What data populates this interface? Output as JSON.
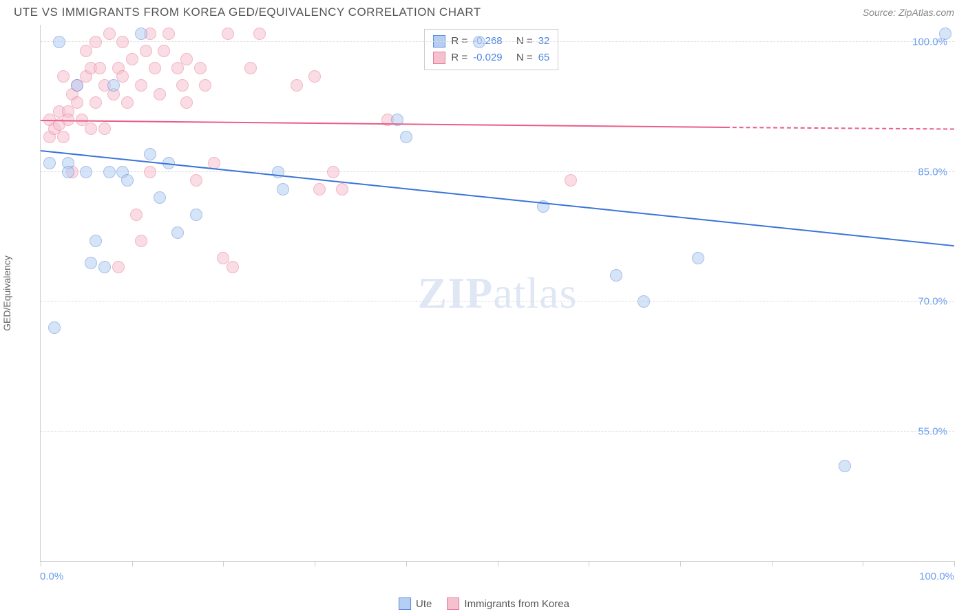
{
  "header": {
    "title": "UTE VS IMMIGRANTS FROM KOREA GED/EQUIVALENCY CORRELATION CHART",
    "source": "Source: ZipAtlas.com"
  },
  "watermark": {
    "part1": "ZIP",
    "part2": "atlas"
  },
  "chart": {
    "type": "scatter",
    "ylabel": "GED/Equivalency",
    "xlim": [
      0,
      100
    ],
    "ylim": [
      40,
      102
    ],
    "yticks": [
      55,
      70,
      85,
      100
    ],
    "ytick_labels": [
      "55.0%",
      "70.0%",
      "85.0%",
      "100.0%"
    ],
    "xtick_positions": [
      0,
      10,
      20,
      30,
      40,
      50,
      60,
      70,
      80,
      90,
      100
    ],
    "xaxis_left": "0.0%",
    "xaxis_right": "100.0%",
    "background_color": "#ffffff",
    "grid_color": "#dddddd",
    "axis_color": "#cccccc",
    "series": {
      "ute": {
        "label": "Ute",
        "fill_color": "#b5cef3",
        "border_color": "#5c8bd9",
        "R": "-0.268",
        "N": "32",
        "trend": {
          "x1": 0,
          "y1": 87.5,
          "x2": 100,
          "y2": 76.5,
          "color": "#3a74d8",
          "dashed_from": 100
        },
        "points": [
          {
            "x": 1,
            "y": 86
          },
          {
            "x": 1.5,
            "y": 67
          },
          {
            "x": 2,
            "y": 100
          },
          {
            "x": 3,
            "y": 86
          },
          {
            "x": 3,
            "y": 85
          },
          {
            "x": 4,
            "y": 95
          },
          {
            "x": 5,
            "y": 85
          },
          {
            "x": 5.5,
            "y": 74.5
          },
          {
            "x": 6,
            "y": 77
          },
          {
            "x": 7,
            "y": 74
          },
          {
            "x": 7.5,
            "y": 85
          },
          {
            "x": 8,
            "y": 95
          },
          {
            "x": 9,
            "y": 85
          },
          {
            "x": 9.5,
            "y": 84
          },
          {
            "x": 11,
            "y": 101
          },
          {
            "x": 12,
            "y": 87
          },
          {
            "x": 13,
            "y": 82
          },
          {
            "x": 14,
            "y": 86
          },
          {
            "x": 15,
            "y": 78
          },
          {
            "x": 17,
            "y": 80
          },
          {
            "x": 26,
            "y": 85
          },
          {
            "x": 26.5,
            "y": 83
          },
          {
            "x": 39,
            "y": 91
          },
          {
            "x": 40,
            "y": 89
          },
          {
            "x": 48,
            "y": 100
          },
          {
            "x": 55,
            "y": 81
          },
          {
            "x": 63,
            "y": 73
          },
          {
            "x": 66,
            "y": 70
          },
          {
            "x": 72,
            "y": 75
          },
          {
            "x": 88,
            "y": 51
          },
          {
            "x": 99,
            "y": 101
          }
        ]
      },
      "korea": {
        "label": "Immigrants from Korea",
        "fill_color": "#f6c1cf",
        "border_color": "#e87a99",
        "R": "-0.029",
        "N": "65",
        "trend": {
          "x1": 0,
          "y1": 91,
          "x2": 75,
          "y2": 90.2,
          "color": "#e95d86",
          "dashed_to": 100,
          "dashed_y": 90
        },
        "points": [
          {
            "x": 1,
            "y": 91
          },
          {
            "x": 1,
            "y": 89
          },
          {
            "x": 1.5,
            "y": 90
          },
          {
            "x": 2,
            "y": 92
          },
          {
            "x": 2,
            "y": 90.5
          },
          {
            "x": 2.5,
            "y": 96
          },
          {
            "x": 2.5,
            "y": 89
          },
          {
            "x": 3,
            "y": 92
          },
          {
            "x": 3,
            "y": 91
          },
          {
            "x": 3.5,
            "y": 94
          },
          {
            "x": 3.5,
            "y": 85
          },
          {
            "x": 4,
            "y": 95
          },
          {
            "x": 4,
            "y": 93
          },
          {
            "x": 4.5,
            "y": 91
          },
          {
            "x": 5,
            "y": 96
          },
          {
            "x": 5,
            "y": 99
          },
          {
            "x": 5.5,
            "y": 90
          },
          {
            "x": 5.5,
            "y": 97
          },
          {
            "x": 6,
            "y": 93
          },
          {
            "x": 6,
            "y": 100
          },
          {
            "x": 6.5,
            "y": 97
          },
          {
            "x": 7,
            "y": 95
          },
          {
            "x": 7,
            "y": 90
          },
          {
            "x": 7.5,
            "y": 101
          },
          {
            "x": 8,
            "y": 94
          },
          {
            "x": 8.5,
            "y": 97
          },
          {
            "x": 8.5,
            "y": 74
          },
          {
            "x": 9,
            "y": 100
          },
          {
            "x": 9,
            "y": 96
          },
          {
            "x": 9.5,
            "y": 93
          },
          {
            "x": 10,
            "y": 98
          },
          {
            "x": 10.5,
            "y": 80
          },
          {
            "x": 11,
            "y": 95
          },
          {
            "x": 11,
            "y": 77
          },
          {
            "x": 11.5,
            "y": 99
          },
          {
            "x": 12,
            "y": 101
          },
          {
            "x": 12,
            "y": 85
          },
          {
            "x": 12.5,
            "y": 97
          },
          {
            "x": 13,
            "y": 94
          },
          {
            "x": 13.5,
            "y": 99
          },
          {
            "x": 14,
            "y": 101
          },
          {
            "x": 15,
            "y": 97
          },
          {
            "x": 15.5,
            "y": 95
          },
          {
            "x": 16,
            "y": 98
          },
          {
            "x": 16,
            "y": 93
          },
          {
            "x": 17,
            "y": 84
          },
          {
            "x": 17.5,
            "y": 97
          },
          {
            "x": 18,
            "y": 95
          },
          {
            "x": 19,
            "y": 86
          },
          {
            "x": 20,
            "y": 75
          },
          {
            "x": 20.5,
            "y": 101
          },
          {
            "x": 21,
            "y": 74
          },
          {
            "x": 23,
            "y": 97
          },
          {
            "x": 24,
            "y": 101
          },
          {
            "x": 28,
            "y": 95
          },
          {
            "x": 30,
            "y": 96
          },
          {
            "x": 30.5,
            "y": 83
          },
          {
            "x": 32,
            "y": 85
          },
          {
            "x": 33,
            "y": 83
          },
          {
            "x": 38,
            "y": 91
          },
          {
            "x": 58,
            "y": 84
          }
        ]
      }
    }
  },
  "stats_box": {
    "r_label": "R =",
    "n_label": "N ="
  },
  "legend": {
    "items": [
      {
        "key": "ute"
      },
      {
        "key": "korea"
      }
    ]
  }
}
